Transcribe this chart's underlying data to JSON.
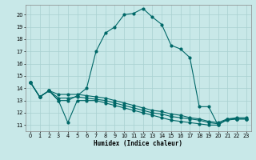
{
  "title": "",
  "xlabel": "Humidex (Indice chaleur)",
  "bg_color": "#c8e8e8",
  "line_color": "#006868",
  "grid_color": "#a8d0d0",
  "xlim": [
    -0.5,
    23.5
  ],
  "ylim": [
    10.5,
    20.8
  ],
  "yticks": [
    11,
    12,
    13,
    14,
    15,
    16,
    17,
    18,
    19,
    20
  ],
  "xticks": [
    0,
    1,
    2,
    3,
    4,
    5,
    6,
    7,
    8,
    9,
    10,
    11,
    12,
    13,
    14,
    15,
    16,
    17,
    18,
    19,
    20,
    21,
    22,
    23
  ],
  "line1_x": [
    0,
    1,
    2,
    3,
    4,
    5,
    6,
    7,
    8,
    9,
    10,
    11,
    12,
    13,
    14,
    15,
    16,
    17,
    18,
    19,
    20,
    21,
    22,
    23
  ],
  "line1_y": [
    14.5,
    13.3,
    13.8,
    13.0,
    13.0,
    13.4,
    14.0,
    17.0,
    18.5,
    19.0,
    20.0,
    20.1,
    20.5,
    19.8,
    19.2,
    17.5,
    17.2,
    16.5,
    12.5,
    12.5,
    11.0,
    11.5,
    11.5,
    11.5
  ],
  "line2_x": [
    0,
    1,
    2,
    3,
    4,
    5,
    6,
    7,
    8,
    9,
    10,
    11,
    12,
    13,
    14,
    15,
    16,
    17,
    18,
    19,
    20,
    21,
    22,
    23
  ],
  "line2_y": [
    14.5,
    13.3,
    13.8,
    13.0,
    11.2,
    13.0,
    13.0,
    13.0,
    12.8,
    12.6,
    12.4,
    12.2,
    12.0,
    11.8,
    11.6,
    11.4,
    11.3,
    11.2,
    11.1,
    11.0,
    11.0,
    11.5,
    11.5,
    11.5
  ],
  "line3_x": [
    0,
    1,
    2,
    3,
    4,
    5,
    6,
    7,
    8,
    9,
    10,
    11,
    12,
    13,
    14,
    15,
    16,
    17,
    18,
    19,
    20,
    21,
    22,
    23
  ],
  "line3_y": [
    14.5,
    13.3,
    13.8,
    13.2,
    13.2,
    13.3,
    13.2,
    13.1,
    13.0,
    12.8,
    12.6,
    12.4,
    12.2,
    12.0,
    11.9,
    11.7,
    11.6,
    11.5,
    11.4,
    11.2,
    11.1,
    11.4,
    11.5,
    11.5
  ],
  "line4_x": [
    0,
    1,
    2,
    3,
    4,
    5,
    6,
    7,
    8,
    9,
    10,
    11,
    12,
    13,
    14,
    15,
    16,
    17,
    18,
    19,
    20,
    21,
    22,
    23
  ],
  "line4_y": [
    14.5,
    13.3,
    13.8,
    13.5,
    13.5,
    13.5,
    13.4,
    13.3,
    13.2,
    13.0,
    12.8,
    12.6,
    12.4,
    12.2,
    12.1,
    11.9,
    11.8,
    11.6,
    11.5,
    11.3,
    11.2,
    11.5,
    11.6,
    11.6
  ]
}
